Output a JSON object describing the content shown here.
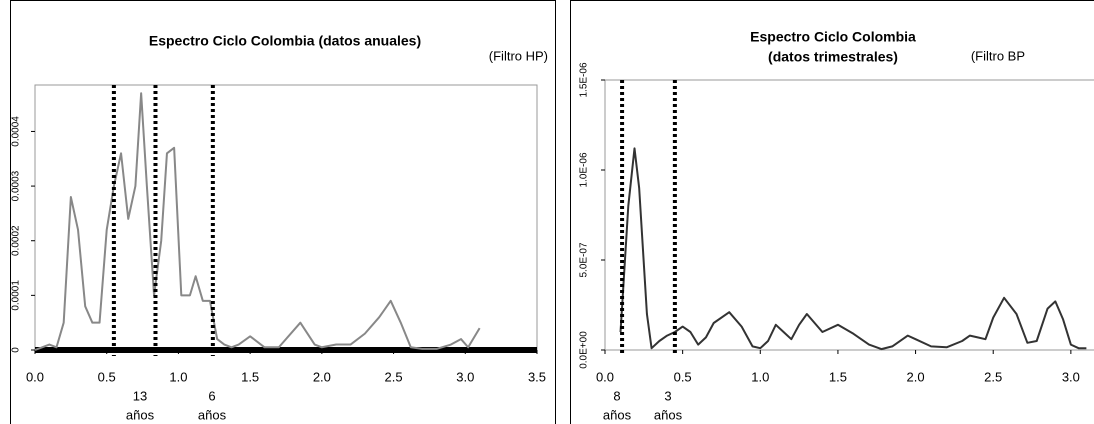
{
  "chart_data": [
    {
      "type": "line",
      "title": "Espectro Ciclo Colombia (datos anuales)",
      "note": "(Filtro HP)",
      "x": [
        0.0,
        0.05,
        0.1,
        0.15,
        0.2,
        0.25,
        0.3,
        0.35,
        0.4,
        0.45,
        0.5,
        0.55,
        0.6,
        0.65,
        0.7,
        0.74,
        0.78,
        0.83,
        0.88,
        0.92,
        0.97,
        1.02,
        1.08,
        1.12,
        1.17,
        1.22,
        1.27,
        1.32,
        1.37,
        1.42,
        1.5,
        1.6,
        1.7,
        1.85,
        1.95,
        2.0,
        2.1,
        2.2,
        2.3,
        2.4,
        2.48,
        2.55,
        2.62,
        2.7,
        2.8,
        2.9,
        2.97,
        3.02,
        3.1
      ],
      "series": [
        {
          "color": "#888888",
          "values": [
            0.0,
            5e-06,
            1e-05,
            5e-06,
            5e-05,
            0.00028,
            0.00022,
            8e-05,
            5e-05,
            5e-05,
            0.00022,
            0.0003,
            0.00036,
            0.00024,
            0.0003,
            0.00047,
            0.0003,
            0.0001,
            0.0002,
            0.00036,
            0.00037,
            0.0001,
            0.0001,
            0.000135,
            9e-05,
            9e-05,
            2e-05,
            1e-05,
            5e-06,
            1e-05,
            2.5e-05,
            5e-06,
            5e-06,
            5e-05,
            1e-05,
            5e-06,
            1e-05,
            1e-05,
            3e-05,
            6e-05,
            9e-05,
            5e-05,
            5e-06,
            2e-06,
            2e-06,
            1e-05,
            2e-05,
            5e-06,
            4e-05
          ]
        }
      ],
      "xlim": [
        0,
        3.5
      ],
      "ylim": [
        0,
        0.000485
      ],
      "xticks": [
        {
          "value": 0,
          "label": "0.0"
        },
        {
          "value": 0.5,
          "label": "0.5"
        },
        {
          "value": 1,
          "label": "1.0"
        },
        {
          "value": 1.5,
          "label": "1.5"
        },
        {
          "value": 2,
          "label": "2.0"
        },
        {
          "value": 2.5,
          "label": "2.5"
        },
        {
          "value": 3,
          "label": "3.0"
        },
        {
          "value": 3.5,
          "label": "3.5"
        }
      ],
      "yticks": [
        0,
        0.0001,
        0.0002,
        0.0003,
        0.0004
      ],
      "vlines": [
        0.55,
        0.84,
        1.24
      ],
      "annotations": [
        {
          "number": "13",
          "unit": "años"
        },
        {
          "number": "6",
          "unit": "años"
        }
      ]
    },
    {
      "type": "line",
      "title": "Espectro Ciclo Colombia",
      "subtitle": "(datos trimestrales)",
      "note": "(Filtro BP",
      "x": [
        0.1,
        0.15,
        0.19,
        0.22,
        0.27,
        0.3,
        0.35,
        0.4,
        0.45,
        0.5,
        0.55,
        0.6,
        0.65,
        0.7,
        0.8,
        0.88,
        0.95,
        1.0,
        1.05,
        1.1,
        1.15,
        1.2,
        1.25,
        1.3,
        1.35,
        1.4,
        1.5,
        1.6,
        1.7,
        1.78,
        1.85,
        1.95,
        2.0,
        2.1,
        2.2,
        2.3,
        2.35,
        2.4,
        2.45,
        2.5,
        2.57,
        2.65,
        2.72,
        2.78,
        2.85,
        2.9,
        2.95,
        3.0,
        3.05,
        3.1
      ],
      "series": [
        {
          "color": "#333333",
          "values": [
            1e-07,
            8e-07,
            1.12e-06,
            9e-07,
            2e-07,
            1e-08,
            5e-08,
            8e-08,
            1e-07,
            1.3e-07,
            1e-07,
            3e-08,
            7e-08,
            1.5e-07,
            2.1e-07,
            1.3e-07,
            2e-08,
            1e-08,
            5e-08,
            1.4e-07,
            1e-07,
            6e-08,
            1.4e-07,
            2e-07,
            1.5e-07,
            1e-07,
            1.4e-07,
            9e-08,
            3e-08,
            5e-09,
            2e-08,
            8e-08,
            6e-08,
            2e-08,
            1.5e-08,
            5e-08,
            8e-08,
            7e-08,
            6e-08,
            1.8e-07,
            2.9e-07,
            2e-07,
            4e-08,
            5e-08,
            2.3e-07,
            2.7e-07,
            1.7e-07,
            3e-08,
            1e-08,
            1e-08
          ]
        }
      ],
      "xlim": [
        0,
        3.5
      ],
      "ylim": [
        0,
        1.5e-06
      ],
      "xticks": [
        {
          "value": 0,
          "label": "0.0"
        },
        {
          "value": 0.5,
          "label": "0.5"
        },
        {
          "value": 1,
          "label": "1.0"
        },
        {
          "value": 1.5,
          "label": "1.5"
        },
        {
          "value": 2,
          "label": "2.0"
        },
        {
          "value": 2.5,
          "label": "2.5"
        },
        {
          "value": 3,
          "label": "3.0"
        }
      ],
      "yticks": [
        {
          "value": 0,
          "label": "0.0E+00"
        },
        {
          "value": 5e-07,
          "label": "5.0E-07"
        },
        {
          "value": 1e-06,
          "label": "1.0E-06"
        },
        {
          "value": 1.5e-06,
          "label": "1.5E-06"
        }
      ],
      "vlines": [
        0.11,
        0.45
      ],
      "annotations": [
        {
          "number": "8",
          "unit": "años"
        },
        {
          "number": "3",
          "unit": "años"
        }
      ]
    }
  ]
}
